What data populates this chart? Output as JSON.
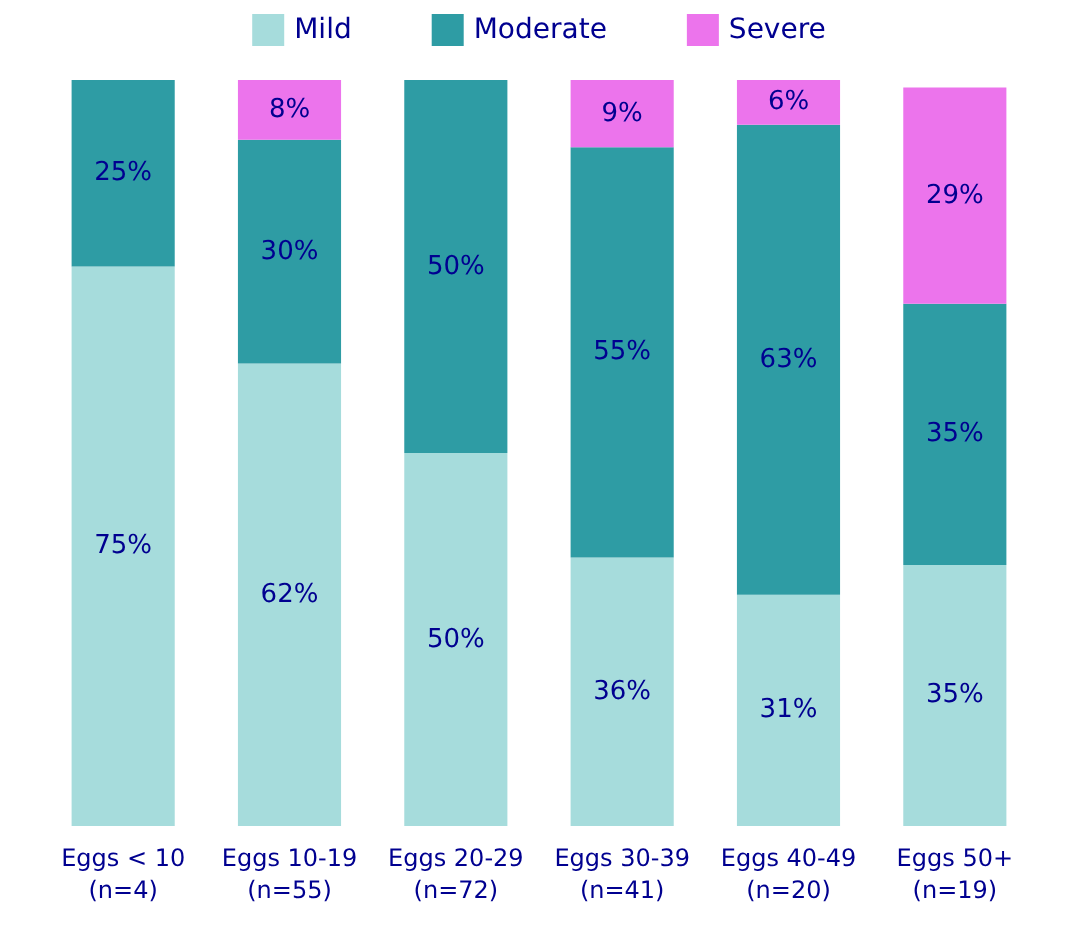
{
  "chart_data": {
    "type": "bar",
    "stacked": true,
    "legend": "top",
    "categories": [
      "Eggs < 10\n(n=4)",
      "Eggs 10-19\n(n=55)",
      "Eggs 20-29\n(n=72)",
      "Eggs 30-39\n(n=41)",
      "Eggs 40-49\n(n=20)",
      "Eggs 50+\n(n=19)"
    ],
    "series": [
      {
        "name": "Mild",
        "color": "#a6dcdc",
        "values": [
          75,
          62,
          50,
          36,
          31,
          35
        ],
        "value_labels": [
          "75%",
          "62%",
          "50%",
          "36%",
          "31%",
          "35%"
        ]
      },
      {
        "name": "Moderate",
        "color": "#2e9ca4",
        "values": [
          25,
          30,
          50,
          55,
          63,
          35
        ],
        "value_labels": [
          "25%",
          "30%",
          "50%",
          "55%",
          "63%",
          "35%"
        ]
      },
      {
        "name": "Severe",
        "color": "#ec74ec",
        "values": [
          null,
          8,
          null,
          9,
          6,
          29
        ],
        "value_labels": [
          null,
          "8%",
          null,
          "9%",
          "6%",
          "29%"
        ]
      }
    ]
  }
}
